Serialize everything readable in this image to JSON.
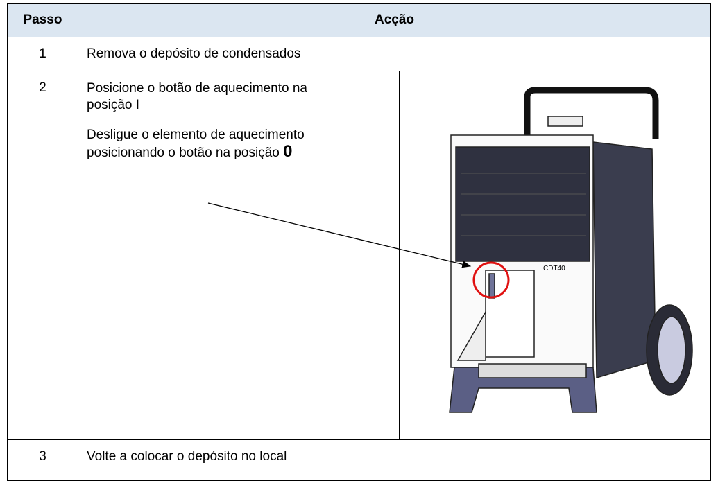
{
  "table": {
    "header": {
      "step": "Passo",
      "action": "Acção"
    },
    "rows": [
      {
        "step": "1",
        "action": "Remova o depósito de condensados"
      },
      {
        "step": "2",
        "paragraphs": [
          {
            "text": "Posicione o botão de aquecimento na posição I"
          },
          {
            "text": "Desligue o elemento de aquecimento posicionando o botão na posição ",
            "bold": "0"
          }
        ],
        "figure": {
          "label": "CDT40"
        }
      },
      {
        "step": "3",
        "action": "Volte a colocar o depósito no local"
      }
    ]
  }
}
